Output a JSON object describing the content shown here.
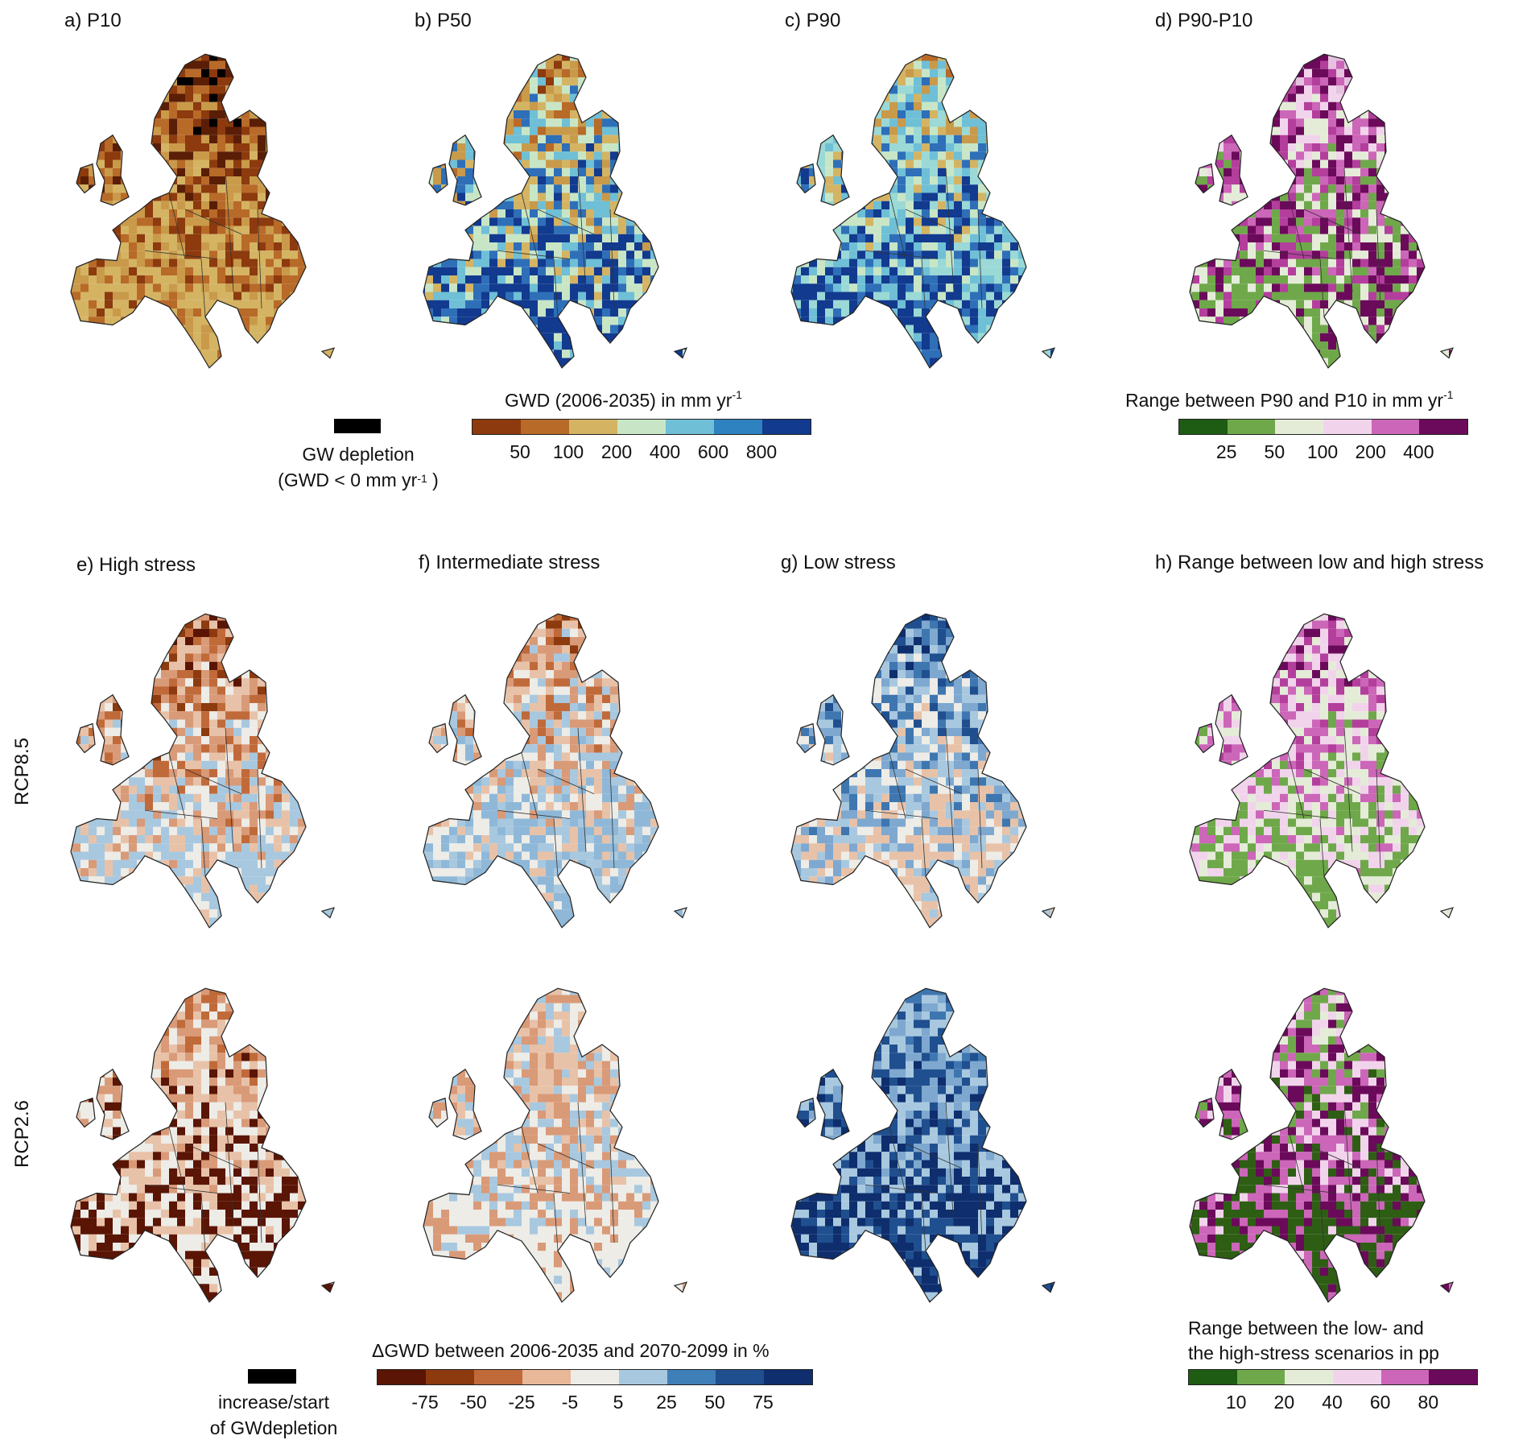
{
  "panels": [
    {
      "title": "a) P10",
      "palette": [
        "#000000",
        "#5a1e06",
        "#8c3a0e",
        "#b86a28",
        "#c99a4a",
        "#d4b463"
      ]
    },
    {
      "title": "b) P50",
      "palette": [
        "#8c3a0e",
        "#b86a28",
        "#c99a4a",
        "#d4b463",
        "#c8e6c6",
        "#6fbfd6",
        "#2e6fb8",
        "#123a8f"
      ]
    },
    {
      "title": "c) P90",
      "palette": [
        "#b86a28",
        "#c99a4a",
        "#d4b463",
        "#c8e6c6",
        "#9ad9d6",
        "#6fbfd6",
        "#2e6fb8",
        "#123a8f"
      ]
    },
    {
      "title": "d) P90-P10",
      "palette": [
        "#e6c1e0",
        "#f1d4ec",
        "#cc66b8",
        "#b33e9c",
        "#6b0a5a",
        "#e4ecd8",
        "#6fa84a"
      ]
    },
    {
      "title": "e) High stress",
      "palette": [
        "#5a1505",
        "#8c3a0e",
        "#c06a3a",
        "#d99a78",
        "#e8c2a8",
        "#edece7",
        "#a8c8df"
      ]
    },
    {
      "title": "f) Intermediate stress",
      "palette": [
        "#8c3a0e",
        "#c06a3a",
        "#d99a78",
        "#e8c2a8",
        "#edece7",
        "#a8c8df",
        "#8fb8d8"
      ]
    },
    {
      "title": "g) Low stress",
      "palette": [
        "#0e2e6e",
        "#1f4f8f",
        "#3e76b0",
        "#7ea8cf",
        "#a8c8df",
        "#edece7",
        "#e8c2a8"
      ]
    },
    {
      "title": "h) Range between low and high stress",
      "palette": [
        "#6b0a5a",
        "#b33e9c",
        "#cc66b8",
        "#f1d4ec",
        "#e4ecd8",
        "#6fa84a"
      ]
    },
    {
      "title": "",
      "palette": [
        "#c06a3a",
        "#d99a78",
        "#e8c2a8",
        "#edece7",
        "#5a1505"
      ]
    },
    {
      "title": "",
      "palette": [
        "#edece7",
        "#e8c2a8",
        "#a8c8df",
        "#d99a78",
        "#edece7"
      ]
    },
    {
      "title": "",
      "palette": [
        "#3e76b0",
        "#7ea8cf",
        "#a8c8df",
        "#1f4f8f",
        "#0e2e6e"
      ]
    },
    {
      "title": "",
      "palette": [
        "#e4ecd8",
        "#6fa84a",
        "#f1d4ec",
        "#cc66b8",
        "#6b0a5a",
        "#2e5e14"
      ]
    }
  ],
  "row_labels": {
    "rcp85": "RCP8.5",
    "rcp26": "RCP2.6"
  },
  "legends": {
    "gw_depletion": {
      "label": "GW depletion",
      "sub_prefix": "(GWD < 0  mm yr",
      "sup": "-1",
      "sub_suffix": " )",
      "color": "#000000"
    },
    "gwd": {
      "title": "GWD (2006-2035) in mm yr",
      "sup": "-1",
      "colors": [
        "#8c3a0e",
        "#b86a28",
        "#d4b463",
        "#c8e6c6",
        "#6fbfd6",
        "#2e82c0",
        "#123a8f"
      ],
      "ticks": [
        "50",
        "100",
        "200",
        "400",
        "600",
        "800"
      ]
    },
    "range_p": {
      "title": "Range between P90 and P10 in mm yr",
      "sup": "-1",
      "colors": [
        "#1e5c14",
        "#6fa84a",
        "#e4ecd8",
        "#f1d4ec",
        "#cc66b8",
        "#6b0a5a"
      ],
      "ticks": [
        "25",
        "50",
        "100",
        "200",
        "400"
      ]
    },
    "increase": {
      "line1": "increase/start",
      "line2": "of GWdepletion",
      "color": "#000000"
    },
    "dgwd": {
      "title": "ΔGWD between 2006-2035 and 2070-2099 in %",
      "colors": [
        "#5a1505",
        "#8c3a0e",
        "#c06a3a",
        "#e8b898",
        "#edece7",
        "#a8c8df",
        "#3e7fb8",
        "#1f4f8f",
        "#0e2e6e"
      ],
      "ticks": [
        "-75",
        "-50",
        "-25",
        "-5",
        "5",
        "25",
        "50",
        "75"
      ]
    },
    "range_pp": {
      "line1": "Range between the low- and",
      "line2": "the high-stress scenarios in pp",
      "colors": [
        "#1e5c14",
        "#6fa84a",
        "#e4ecd8",
        "#f1d4ec",
        "#cc66b8",
        "#6b0a5a"
      ],
      "ticks": [
        "10",
        "20",
        "40",
        "60",
        "80"
      ]
    }
  }
}
